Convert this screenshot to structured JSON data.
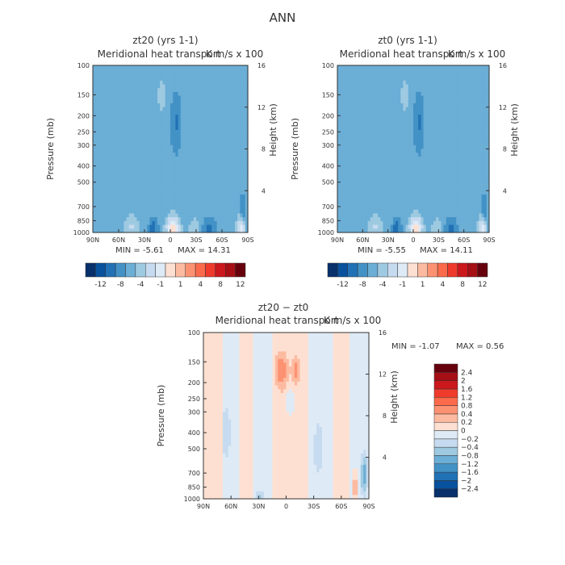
{
  "figure": {
    "title": "ANN",
    "subtitle": "Meridional heat transport",
    "units": "K m/s x 100"
  },
  "chart_data": [
    {
      "type": "heatmap",
      "title": "zt20 (yrs 1-1)",
      "subtitle": "Meridional heat transport",
      "units": "K m/s x 100",
      "xlabel": "",
      "ylabel": "Pressure (mb)",
      "ylabel_right": "Height (km)",
      "x_ticks": [
        "90N",
        "60N",
        "30N",
        "0",
        "30S",
        "60S",
        "90S"
      ],
      "x_values": [
        90,
        60,
        30,
        0,
        -30,
        -60,
        -90
      ],
      "xlim": [
        90,
        -90
      ],
      "y_ticks": [
        100,
        150,
        200,
        250,
        300,
        400,
        500,
        700,
        850,
        1000
      ],
      "ylim": [
        1000,
        100
      ],
      "y_scale": "log",
      "y_right_ticks": [
        16,
        12,
        8,
        4
      ],
      "min": -5.61,
      "max": 14.31,
      "min_label": "MIN = -5.61",
      "max_label": "MAX = 14.31",
      "features": [
        {
          "lat": 10,
          "p": 150,
          "value": 4,
          "spread_lat": 4,
          "spread_p": 0.1
        },
        {
          "lat": -7,
          "p": 220,
          "value": -4,
          "spread_lat": 5,
          "spread_p": 0.14
        },
        {
          "lat": 38,
          "p": 170,
          "value": -0.6,
          "spread_lat": 8,
          "spread_p": 0.12
        },
        {
          "lat": -23,
          "p": 210,
          "value": 1.4,
          "spread_lat": 8,
          "spread_p": 0.15
        },
        {
          "lat": 45,
          "p": 940,
          "value": 4,
          "spread_lat": 6,
          "spread_p": 0.07
        },
        {
          "lat": 20,
          "p": 960,
          "value": -6,
          "spread_lat": 5,
          "spread_p": 0.06
        },
        {
          "lat": -3,
          "p": 940,
          "value": 14.3,
          "spread_lat": 7,
          "spread_p": 0.07
        },
        {
          "lat": -28,
          "p": 950,
          "value": 4,
          "spread_lat": 6,
          "spread_p": 0.06
        },
        {
          "lat": -45,
          "p": 950,
          "value": -5.6,
          "spread_lat": 7,
          "spread_p": 0.07
        },
        {
          "lat": -82,
          "p": 960,
          "value": 12,
          "spread_lat": 4,
          "spread_p": 0.08
        },
        {
          "lat": -84,
          "p": 740,
          "value": -4,
          "spread_lat": 3,
          "spread_p": 0.08
        }
      ],
      "background": [
        {
          "from": 90,
          "to": 60,
          "value": 0.6
        },
        {
          "from": 60,
          "to": 23,
          "value": 0.6
        },
        {
          "from": 23,
          "to": -35,
          "value": -0.5
        },
        {
          "from": -35,
          "to": -70,
          "value": 0.6
        },
        {
          "from": -70,
          "to": -90,
          "value": -0.5
        }
      ]
    },
    {
      "type": "heatmap",
      "title": "zt0 (yrs 1-1)",
      "subtitle": "Meridional heat transport",
      "units": "K m/s x 100",
      "xlabel": "",
      "ylabel": "Pressure (mb)",
      "ylabel_right": "Height (km)",
      "x_ticks": [
        "90N",
        "60N",
        "30N",
        "0",
        "30S",
        "60S",
        "90S"
      ],
      "x_values": [
        90,
        60,
        30,
        0,
        -30,
        -60,
        -90
      ],
      "xlim": [
        90,
        -90
      ],
      "y_ticks": [
        100,
        150,
        200,
        250,
        300,
        400,
        500,
        700,
        850,
        1000
      ],
      "ylim": [
        1000,
        100
      ],
      "y_scale": "log",
      "y_right_ticks": [
        16,
        12,
        8,
        4
      ],
      "min": -5.55,
      "max": 14.11,
      "min_label": "MIN = -5.55",
      "max_label": "MAX = 14.11",
      "features": [
        {
          "lat": 10,
          "p": 150,
          "value": 4,
          "spread_lat": 4,
          "spread_p": 0.1
        },
        {
          "lat": -7,
          "p": 220,
          "value": -4,
          "spread_lat": 5,
          "spread_p": 0.14
        },
        {
          "lat": 38,
          "p": 170,
          "value": -0.6,
          "spread_lat": 8,
          "spread_p": 0.12
        },
        {
          "lat": -23,
          "p": 210,
          "value": 1.4,
          "spread_lat": 8,
          "spread_p": 0.15
        },
        {
          "lat": 45,
          "p": 940,
          "value": 4,
          "spread_lat": 6,
          "spread_p": 0.07
        },
        {
          "lat": 20,
          "p": 960,
          "value": -6,
          "spread_lat": 5,
          "spread_p": 0.06
        },
        {
          "lat": -3,
          "p": 940,
          "value": 14.1,
          "spread_lat": 7,
          "spread_p": 0.07
        },
        {
          "lat": -28,
          "p": 950,
          "value": 4,
          "spread_lat": 6,
          "spread_p": 0.06
        },
        {
          "lat": -45,
          "p": 950,
          "value": -5.5,
          "spread_lat": 7,
          "spread_p": 0.07
        },
        {
          "lat": -82,
          "p": 960,
          "value": 12,
          "spread_lat": 4,
          "spread_p": 0.08
        },
        {
          "lat": -84,
          "p": 740,
          "value": -4,
          "spread_lat": 3,
          "spread_p": 0.08
        }
      ],
      "background": [
        {
          "from": 90,
          "to": 60,
          "value": 0.6
        },
        {
          "from": 60,
          "to": 23,
          "value": 0.6
        },
        {
          "from": 23,
          "to": -35,
          "value": -0.5
        },
        {
          "from": -35,
          "to": -70,
          "value": 0.6
        },
        {
          "from": -70,
          "to": -90,
          "value": -0.5
        }
      ]
    },
    {
      "type": "heatmap",
      "title": "zt20 − zt0",
      "subtitle": "Meridional heat transport",
      "units": "K m/s x 100",
      "xlabel": "",
      "ylabel": "Pressure (mb)",
      "ylabel_right": "Height (km)",
      "x_ticks": [
        "90N",
        "60N",
        "30N",
        "0",
        "30S",
        "60S",
        "90S"
      ],
      "x_values": [
        90,
        60,
        30,
        0,
        -30,
        -60,
        -90
      ],
      "xlim": [
        90,
        -90
      ],
      "y_ticks": [
        100,
        150,
        200,
        250,
        300,
        400,
        500,
        700,
        850,
        1000
      ],
      "ylim": [
        1000,
        100
      ],
      "y_scale": "log",
      "y_right_ticks": [
        16,
        12,
        8,
        4
      ],
      "min": -1.07,
      "max": 0.56,
      "min_label": "MIN = -1.07",
      "max_label": "MAX = 0.56",
      "features": [
        {
          "lat": 5,
          "p": 170,
          "value": 0.56,
          "spread_lat": 6,
          "spread_p": 0.1
        },
        {
          "lat": -10,
          "p": 170,
          "value": 0.4,
          "spread_lat": 4,
          "spread_p": 0.08
        },
        {
          "lat": -5,
          "p": 260,
          "value": -0.3,
          "spread_lat": 5,
          "spread_p": 0.08
        },
        {
          "lat": -75,
          "p": 850,
          "value": 0.4,
          "spread_lat": 3,
          "spread_p": 0.1
        },
        {
          "lat": -85,
          "p": 720,
          "value": -1.07,
          "spread_lat": 3,
          "spread_p": 0.1
        },
        {
          "lat": 28,
          "p": 980,
          "value": -0.4,
          "spread_lat": 5,
          "spread_p": 0.04
        },
        {
          "lat": 65,
          "p": 400,
          "value": -0.2,
          "spread_lat": 5,
          "spread_p": 0.2
        },
        {
          "lat": -35,
          "p": 500,
          "value": -0.2,
          "spread_lat": 5,
          "spread_p": 0.2
        }
      ],
      "background": [
        {
          "from": 90,
          "to": 70,
          "value": 0.1
        },
        {
          "from": 70,
          "to": 50,
          "value": -0.1
        },
        {
          "from": 50,
          "to": 35,
          "value": 0.1
        },
        {
          "from": 35,
          "to": 15,
          "value": -0.1
        },
        {
          "from": 15,
          "to": -25,
          "value": 0.1
        },
        {
          "from": -25,
          "to": -50,
          "value": -0.1
        },
        {
          "from": -50,
          "to": -70,
          "value": 0.1
        },
        {
          "from": -70,
          "to": -90,
          "value": -0.1
        }
      ]
    }
  ],
  "colorbars": [
    {
      "orientation": "horizontal",
      "levels": [
        -12,
        -8,
        -4,
        -1,
        1,
        4,
        8,
        12
      ],
      "labels": [
        "-12",
        "-8",
        "-4",
        "-1",
        "1",
        "4",
        "8",
        "12"
      ],
      "colors": [
        "#08306b",
        "#08519c",
        "#2171b5",
        "#4292c6",
        "#6baed6",
        "#9ecae1",
        "#c6dbef",
        "#deebf7",
        "#fee0d2",
        "#fcbba1",
        "#fc9272",
        "#fb6a4a",
        "#ef3b2c",
        "#cb181d",
        "#a50f15",
        "#67000d"
      ]
    },
    {
      "orientation": "horizontal",
      "levels": [
        -12,
        -8,
        -4,
        -1,
        1,
        4,
        8,
        12
      ],
      "labels": [
        "-12",
        "-8",
        "-4",
        "-1",
        "1",
        "4",
        "8",
        "12"
      ],
      "colors": [
        "#08306b",
        "#08519c",
        "#2171b5",
        "#4292c6",
        "#6baed6",
        "#9ecae1",
        "#c6dbef",
        "#deebf7",
        "#fee0d2",
        "#fcbba1",
        "#fc9272",
        "#fb6a4a",
        "#ef3b2c",
        "#cb181d",
        "#a50f15",
        "#67000d"
      ]
    },
    {
      "orientation": "vertical",
      "levels": [
        -2.4,
        -2,
        -1.6,
        -1.2,
        -0.8,
        -0.4,
        -0.2,
        0,
        0.2,
        0.4,
        0.8,
        1.2,
        1.6,
        2,
        2.4
      ],
      "labels": [
        "2.4",
        "2",
        "1.6",
        "1.2",
        "0.8",
        "0.4",
        "0.2",
        "0",
        "−0.2",
        "−0.4",
        "−0.8",
        "−1.2",
        "−1.6",
        "−2",
        "−2.4"
      ],
      "colors": [
        "#08306b",
        "#08519c",
        "#2171b5",
        "#4292c6",
        "#6baed6",
        "#9ecae1",
        "#c6dbef",
        "#deebf7",
        "#fee0d2",
        "#fcbba1",
        "#fc9272",
        "#fb6a4a",
        "#ef3b2c",
        "#cb181d",
        "#a50f15",
        "#67000d"
      ]
    }
  ]
}
